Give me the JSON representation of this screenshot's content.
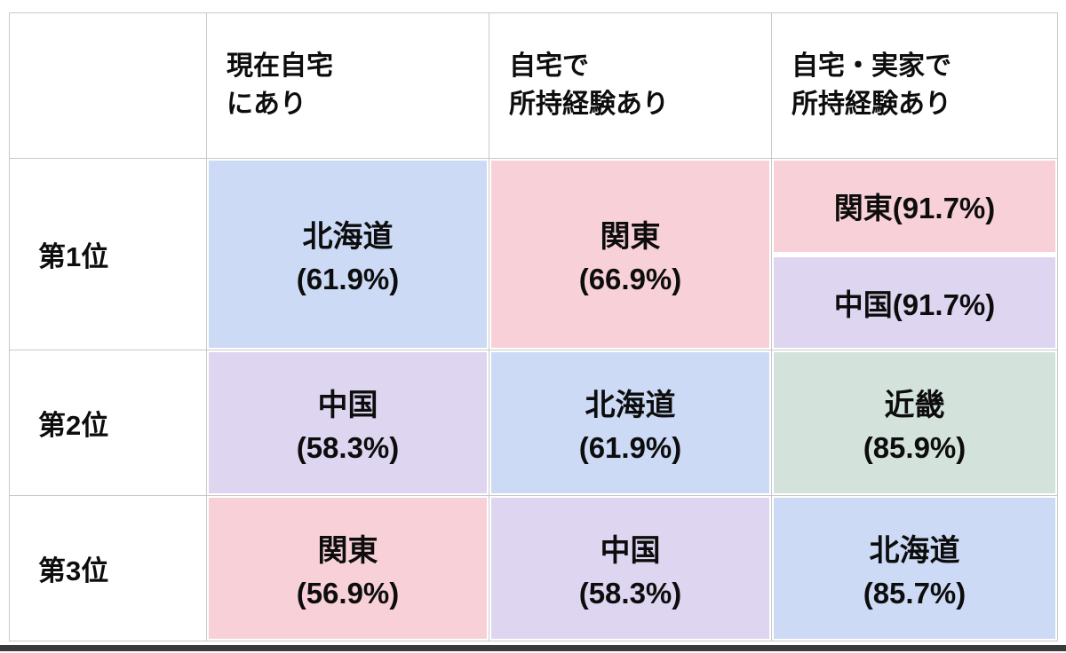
{
  "page": {
    "background": "#ffffff",
    "bottom_bar_color": "#3a3a3a"
  },
  "palette": {
    "blue": "#ccdaf6",
    "pink": "#f8d1d8",
    "purple": "#ded5f0",
    "green": "#d3e3dc",
    "grid_line": "#c9c9c9",
    "text": "#0d0d0d"
  },
  "table": {
    "header": {
      "col2": "現在自宅\nにあり",
      "col3": "自宅で\n所持経験あり",
      "col4": "自宅・実家で\n所持経験あり"
    },
    "rows": [
      {
        "rank": "第1位",
        "cells": [
          {
            "region": "北海道",
            "value": "(61.9%)"
          },
          {
            "region": "関東",
            "value": "(66.9%)"
          }
        ],
        "split": [
          {
            "text": "関東(91.7%)"
          },
          {
            "text": "中国(91.7%)"
          }
        ]
      },
      {
        "rank": "第2位",
        "cells": [
          {
            "region": "中国",
            "value": "(58.3%)"
          },
          {
            "region": "北海道",
            "value": "(61.9%)"
          },
          {
            "region": "近畿",
            "value": "(85.9%)"
          }
        ]
      },
      {
        "rank": "第3位",
        "cells": [
          {
            "region": "関東",
            "value": "(56.9%)"
          },
          {
            "region": "中国",
            "value": "(58.3%)"
          },
          {
            "region": "北海道",
            "value": "(85.7%)"
          }
        ]
      }
    ]
  },
  "chart_data": {
    "type": "table",
    "columns": [
      "",
      "現在自宅にあり",
      "自宅で所持経験あり",
      "自宅・実家で所持経験あり"
    ],
    "rows": [
      [
        "第1位",
        "北海道 (61.9%)",
        "関東 (66.9%)",
        "関東(91.7%) / 中国(91.7%)"
      ],
      [
        "第2位",
        "中国 (58.3%)",
        "北海道 (61.9%)",
        "近畿 (85.9%)"
      ],
      [
        "第3位",
        "関東 (56.9%)",
        "中国 (58.3%)",
        "北海道 (85.7%)"
      ]
    ],
    "cell_values_percent": {
      "現在自宅にあり": {
        "北海道": 61.9,
        "中国": 58.3,
        "関東": 56.9
      },
      "自宅で所持経験あり": {
        "関東": 66.9,
        "北海道": 61.9,
        "中国": 58.3
      },
      "自宅・実家で所持経験あり": {
        "関東": 91.7,
        "中国": 91.7,
        "近畿": 85.9,
        "北海道": 85.7
      }
    },
    "region_colors": {
      "北海道": "#ccdaf6",
      "関東": "#f8d1d8",
      "中国": "#ded5f0",
      "近畿": "#d3e3dc"
    },
    "title": "",
    "legend_position": "none",
    "grid": true
  }
}
